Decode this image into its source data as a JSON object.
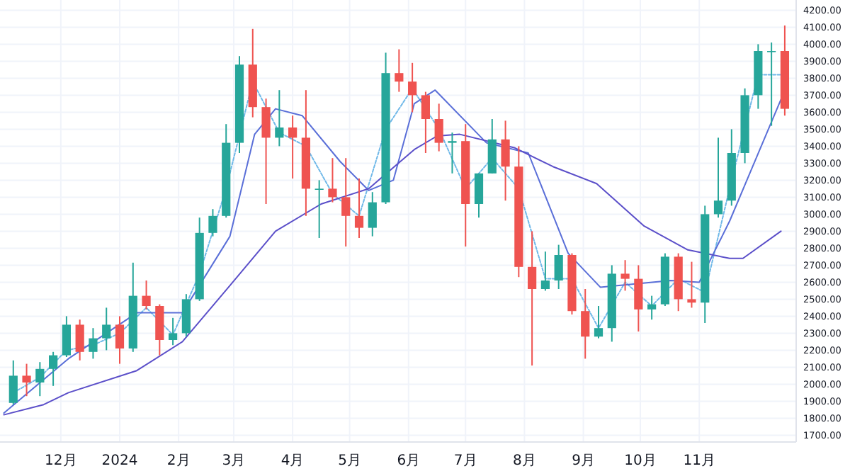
{
  "chart_data": {
    "type": "candlestick",
    "grid": true,
    "xlim": [
      "2023-10-30",
      "2024-12-22"
    ],
    "ylim": [
      1660,
      4260
    ],
    "xticks": [
      {
        "value": "2023-12-01",
        "label": "12月"
      },
      {
        "value": "2024-01-01",
        "label": "2024"
      },
      {
        "value": "2024-02-01",
        "label": "2月"
      },
      {
        "value": "2024-03-01",
        "label": "3月"
      },
      {
        "value": "2024-04-01",
        "label": "4月"
      },
      {
        "value": "2024-05-01",
        "label": "5月"
      },
      {
        "value": "2024-06-01",
        "label": "6月"
      },
      {
        "value": "2024-07-01",
        "label": "7月"
      },
      {
        "value": "2024-08-01",
        "label": "8月"
      },
      {
        "value": "2024-09-01",
        "label": "9月"
      },
      {
        "value": "2024-10-01",
        "label": "10月"
      },
      {
        "value": "2024-11-01",
        "label": "11月"
      }
    ],
    "yticks": [
      {
        "value": 1700,
        "label": "1700.00"
      },
      {
        "value": 1800,
        "label": "1800.00"
      },
      {
        "value": 1900,
        "label": "1900.00"
      },
      {
        "value": 2000,
        "label": "2000.00"
      },
      {
        "value": 2100,
        "label": "2100.00"
      },
      {
        "value": 2200,
        "label": "2200.00"
      },
      {
        "value": 2300,
        "label": "2300.00"
      },
      {
        "value": 2400,
        "label": "2400.00"
      },
      {
        "value": 2500,
        "label": "2500.00"
      },
      {
        "value": 2600,
        "label": "2600.00"
      },
      {
        "value": 2700,
        "label": "2700.00"
      },
      {
        "value": 2800,
        "label": "2800.00"
      },
      {
        "value": 2900,
        "label": "2900.00"
      },
      {
        "value": 3000,
        "label": "3000.00"
      },
      {
        "value": 3100,
        "label": "3100.00"
      },
      {
        "value": 3200,
        "label": "3200.00"
      },
      {
        "value": 3300,
        "label": "3300.00"
      },
      {
        "value": 3400,
        "label": "3400.00"
      },
      {
        "value": 3500,
        "label": "3500.00"
      },
      {
        "value": 3600,
        "label": "3600.00"
      },
      {
        "value": 3700,
        "label": "3700.00"
      },
      {
        "value": 3800,
        "label": "3800.00"
      },
      {
        "value": 3900,
        "label": "3900.00"
      },
      {
        "value": 4000,
        "label": "4000.00"
      },
      {
        "value": 4100,
        "label": "4100.00"
      },
      {
        "value": 4200,
        "label": "4200.00"
      }
    ],
    "x": [
      "2023-11-06",
      "2023-11-13",
      "2023-11-20",
      "2023-11-27",
      "2023-12-04",
      "2023-12-11",
      "2023-12-18",
      "2023-12-25",
      "2024-01-01",
      "2024-01-08",
      "2024-01-15",
      "2024-01-22",
      "2024-01-29",
      "2024-02-05",
      "2024-02-12",
      "2024-02-19",
      "2024-02-26",
      "2024-03-04",
      "2024-03-11",
      "2024-03-18",
      "2024-03-25",
      "2024-04-01",
      "2024-04-08",
      "2024-04-15",
      "2024-04-22",
      "2024-04-29",
      "2024-05-06",
      "2024-05-13",
      "2024-05-20",
      "2024-05-27",
      "2024-06-03",
      "2024-06-10",
      "2024-06-17",
      "2024-06-24",
      "2024-07-01",
      "2024-07-08",
      "2024-07-15",
      "2024-07-22",
      "2024-07-29",
      "2024-08-05",
      "2024-08-12",
      "2024-08-19",
      "2024-08-26",
      "2024-09-02",
      "2024-09-09",
      "2024-09-16",
      "2024-09-23",
      "2024-09-30",
      "2024-10-07",
      "2024-10-14",
      "2024-10-21",
      "2024-10-28",
      "2024-11-04",
      "2024-11-11",
      "2024-11-18",
      "2024-11-25",
      "2024-12-02",
      "2024-12-09",
      "2024-12-16"
    ],
    "ohlc": [
      [
        1890,
        2140,
        1880,
        2050
      ],
      [
        2050,
        2120,
        1930,
        2010
      ],
      [
        2010,
        2130,
        1930,
        2090
      ],
      [
        2090,
        2190,
        1990,
        2170
      ],
      [
        2170,
        2400,
        2160,
        2350
      ],
      [
        2350,
        2380,
        2140,
        2190
      ],
      [
        2190,
        2330,
        2150,
        2270
      ],
      [
        2270,
        2450,
        2200,
        2350
      ],
      [
        2350,
        2400,
        2120,
        2210
      ],
      [
        2210,
        2715,
        2190,
        2520
      ],
      [
        2520,
        2610,
        2440,
        2460
      ],
      [
        2460,
        2470,
        2170,
        2260
      ],
      [
        2260,
        2390,
        2230,
        2300
      ],
      [
        2300,
        2530,
        2280,
        2500
      ],
      [
        2500,
        2980,
        2490,
        2890
      ],
      [
        2890,
        3030,
        2870,
        2990
      ],
      [
        2990,
        3530,
        2980,
        3420
      ],
      [
        3420,
        3930,
        3360,
        3880
      ],
      [
        3880,
        4090,
        3570,
        3630
      ],
      [
        3630,
        3680,
        3060,
        3450
      ],
      [
        3450,
        3730,
        3400,
        3510
      ],
      [
        3510,
        3580,
        3210,
        3450
      ],
      [
        3450,
        3730,
        2990,
        3150
      ],
      [
        3150,
        3200,
        2860,
        3150
      ],
      [
        3150,
        3330,
        3070,
        3100
      ],
      [
        3100,
        3330,
        2810,
        2990
      ],
      [
        2990,
        3210,
        2860,
        2920
      ],
      [
        2920,
        3130,
        2870,
        3070
      ],
      [
        3070,
        3950,
        3060,
        3830
      ],
      [
        3830,
        3970,
        3720,
        3780
      ],
      [
        3780,
        3890,
        3600,
        3700
      ],
      [
        3700,
        3720,
        3360,
        3560
      ],
      [
        3560,
        3650,
        3370,
        3420
      ],
      [
        3420,
        3480,
        3240,
        3430
      ],
      [
        3430,
        3530,
        2810,
        3060
      ],
      [
        3060,
        3240,
        2980,
        3240
      ],
      [
        3240,
        3560,
        3240,
        3440
      ],
      [
        3440,
        3550,
        3080,
        3280
      ],
      [
        3280,
        3400,
        2630,
        2690
      ],
      [
        2690,
        2900,
        2110,
        2560
      ],
      [
        2560,
        2780,
        2550,
        2610
      ],
      [
        2610,
        2820,
        2560,
        2760
      ],
      [
        2760,
        2770,
        2410,
        2430
      ],
      [
        2430,
        2560,
        2150,
        2280
      ],
      [
        2280,
        2460,
        2270,
        2330
      ],
      [
        2330,
        2700,
        2250,
        2650
      ],
      [
        2650,
        2730,
        2550,
        2620
      ],
      [
        2620,
        2700,
        2310,
        2440
      ],
      [
        2440,
        2520,
        2380,
        2470
      ],
      [
        2470,
        2770,
        2460,
        2750
      ],
      [
        2750,
        2770,
        2430,
        2500
      ],
      [
        2500,
        2720,
        2450,
        2480
      ],
      [
        2480,
        3050,
        2360,
        3000
      ],
      [
        3000,
        3450,
        2980,
        3080
      ],
      [
        3080,
        3500,
        3050,
        3360
      ],
      [
        3360,
        3740,
        3300,
        3700
      ],
      [
        3700,
        4000,
        3620,
        3960
      ],
      [
        3960,
        4010,
        3520,
        3960
      ],
      [
        3960,
        4110,
        3580,
        3620
      ]
    ],
    "series": [
      {
        "type": "line",
        "color": "#6fb8e8",
        "line_style": "dashed",
        "x": [
          "2023-11-06",
          "2023-11-20",
          "2023-12-04",
          "2023-12-18",
          "2024-01-01",
          "2024-01-15",
          "2024-01-29",
          "2024-02-12",
          "2024-02-26",
          "2024-03-11",
          "2024-03-25",
          "2024-04-08",
          "2024-04-22",
          "2024-05-06",
          "2024-05-20",
          "2024-06-03",
          "2024-06-17",
          "2024-07-01",
          "2024-07-15",
          "2024-07-29",
          "2024-08-12",
          "2024-08-26",
          "2024-09-09",
          "2024-09-23",
          "2024-10-07",
          "2024-10-21",
          "2024-11-04",
          "2024-11-18",
          "2024-12-02",
          "2024-12-16"
        ],
        "values": [
          1950,
          2040,
          2200,
          2230,
          2300,
          2450,
          2290,
          2650,
          3150,
          3780,
          3480,
          3400,
          3120,
          2990,
          3500,
          3740,
          3500,
          3150,
          3330,
          3150,
          2620,
          2620,
          2330,
          2600,
          2460,
          2620,
          2540,
          3200,
          3820,
          3820
        ]
      },
      {
        "type": "line",
        "color": "#5a6fd8",
        "x": [
          "2023-11-01",
          "2023-12-05",
          "2024-01-10",
          "2024-02-03",
          "2024-02-28",
          "2024-03-12",
          "2024-03-23",
          "2024-04-06",
          "2024-04-26",
          "2024-05-11",
          "2024-05-24",
          "2024-06-04",
          "2024-06-15",
          "2024-07-12",
          "2024-08-03",
          "2024-08-24",
          "2024-09-10",
          "2024-10-17",
          "2024-11-01",
          "2024-11-17",
          "2024-12-14"
        ],
        "values": [
          1830,
          2150,
          2420,
          2420,
          2870,
          3470,
          3620,
          3580,
          3310,
          3140,
          3200,
          3650,
          3730,
          3420,
          3360,
          2770,
          2570,
          2610,
          2600,
          2960,
          3675
        ]
      },
      {
        "type": "line",
        "color": "#5b4fc9",
        "x": [
          "2023-11-01",
          "2023-11-22",
          "2023-12-05",
          "2024-01-10",
          "2024-02-03",
          "2024-02-28",
          "2024-03-23",
          "2024-04-16",
          "2024-05-11",
          "2024-06-04",
          "2024-06-16",
          "2024-06-28",
          "2024-07-27",
          "2024-08-16",
          "2024-09-08",
          "2024-10-03",
          "2024-10-26",
          "2024-11-17",
          "2024-11-24",
          "2024-12-14"
        ],
        "values": [
          1820,
          1880,
          1950,
          2080,
          2250,
          2580,
          2900,
          3060,
          3150,
          3380,
          3460,
          3470,
          3390,
          3280,
          3180,
          2930,
          2790,
          2740,
          2740,
          2900
        ]
      }
    ]
  }
}
